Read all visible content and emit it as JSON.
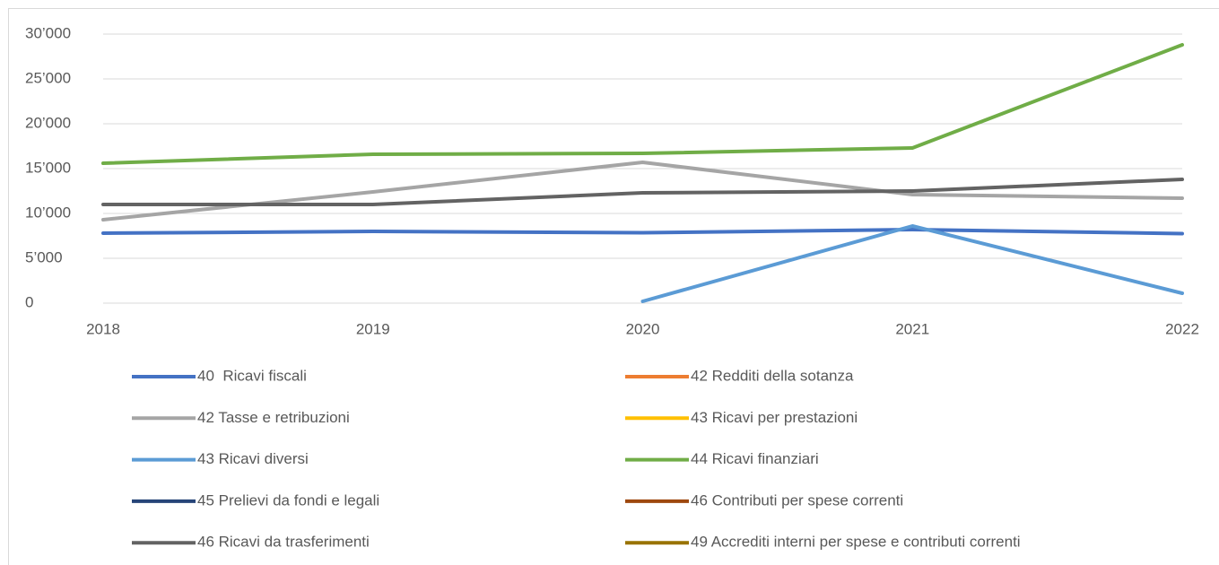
{
  "chart_data": {
    "type": "line",
    "categories": [
      "2018",
      "2019",
      "2020",
      "2021",
      "2022"
    ],
    "series": [
      {
        "name": "40  Ricavi fiscali",
        "color": "#4472c4",
        "values": [
          7800,
          8000,
          7850,
          8200,
          7750
        ]
      },
      {
        "name": "42 Redditi della sotanza",
        "color": "#ed7d31",
        "values": [
          null,
          null,
          null,
          null,
          null
        ]
      },
      {
        "name": "42 Tasse e retribuzioni",
        "color": "#a5a5a5",
        "values": [
          9300,
          12400,
          15700,
          12100,
          11700
        ]
      },
      {
        "name": "43 Ricavi per prestazioni",
        "color": "#ffc000",
        "values": [
          null,
          null,
          null,
          null,
          null
        ]
      },
      {
        "name": "43 Ricavi diversi",
        "color": "#5b9bd5",
        "values": [
          null,
          null,
          200,
          8600,
          1100
        ]
      },
      {
        "name": "44 Ricavi finanziari",
        "color": "#70ad47",
        "values": [
          15600,
          16600,
          16700,
          17300,
          28800
        ]
      },
      {
        "name": "45 Prelievi da fondi e legali",
        "color": "#264478",
        "values": [
          null,
          null,
          null,
          null,
          null
        ]
      },
      {
        "name": "46 Contributi per spese correnti",
        "color": "#9e480e",
        "values": [
          null,
          null,
          null,
          null,
          null
        ]
      },
      {
        "name": "46 Ricavi da trasferimenti",
        "color": "#636363",
        "values": [
          11000,
          11000,
          12300,
          12500,
          13800
        ]
      },
      {
        "name": "49 Accrediti interni per spese e contributi correnti",
        "color": "#997300",
        "values": [
          null,
          null,
          null,
          null,
          null
        ]
      }
    ],
    "ylim": [
      0,
      30000
    ],
    "yticks": [
      0,
      {
        "value": 5000,
        "label": "5’000"
      },
      {
        "value": 10000,
        "label": "10’000"
      },
      {
        "value": 15000,
        "label": "15’000"
      },
      {
        "value": 20000,
        "label": "20’000"
      },
      {
        "value": 25000,
        "label": "25’000"
      },
      {
        "value": 30000,
        "label": "30’000"
      }
    ],
    "grid": true
  }
}
